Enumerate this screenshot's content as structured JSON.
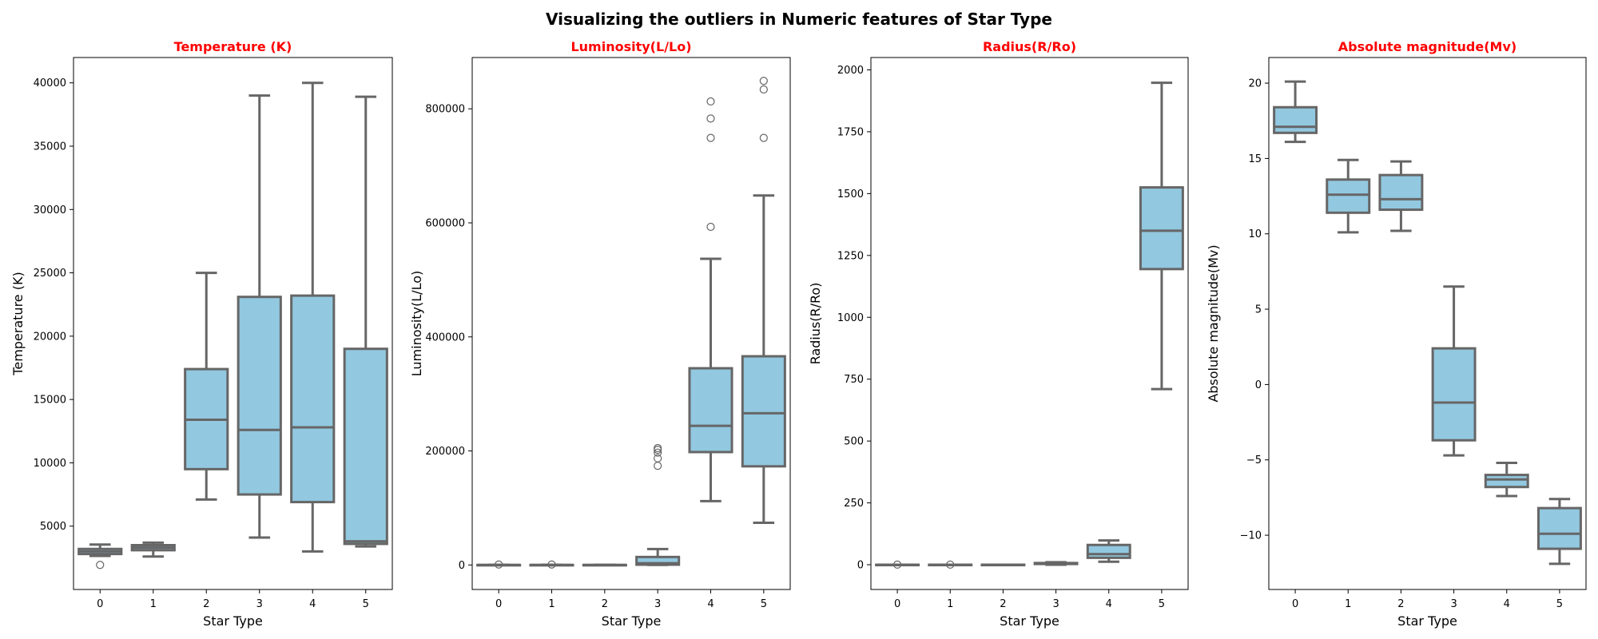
{
  "suptitle": "Visualizing the outliers in Numeric features of Star Type",
  "colors": {
    "box_fill": "#92c8e0",
    "line": "#666666",
    "title": "#ff0000"
  },
  "chart_data": [
    {
      "type": "box",
      "title": "Temperature (K)",
      "xlabel": "Star Type",
      "ylabel": "Temperature (K)",
      "categories": [
        "0",
        "1",
        "2",
        "3",
        "4",
        "5"
      ],
      "ylim": [
        0,
        42000
      ],
      "yticks": [
        5000,
        10000,
        15000,
        20000,
        25000,
        30000,
        35000,
        40000
      ],
      "ytick_labels": [
        "5000",
        "10000",
        "15000",
        "20000",
        "25000",
        "30000",
        "35000",
        "40000"
      ],
      "boxes": [
        {
          "whislo": 2650,
          "q1": 2800,
          "med": 3000,
          "q3": 3200,
          "whishi": 3550,
          "fliers": [
            1940
          ]
        },
        {
          "whislo": 2600,
          "q1": 3100,
          "med": 3300,
          "q3": 3500,
          "whishi": 3700,
          "fliers": []
        },
        {
          "whislo": 7100,
          "q1": 9500,
          "med": 13400,
          "q3": 17400,
          "whishi": 25000,
          "fliers": []
        },
        {
          "whislo": 4100,
          "q1": 7500,
          "med": 12600,
          "q3": 23100,
          "whishi": 39000,
          "fliers": []
        },
        {
          "whislo": 3000,
          "q1": 6900,
          "med": 12800,
          "q3": 23200,
          "whishi": 40000,
          "fliers": []
        },
        {
          "whislo": 3400,
          "q1": 3600,
          "med": 3800,
          "q3": 19000,
          "whishi": 38900,
          "fliers": []
        }
      ]
    },
    {
      "type": "box",
      "title": "Luminosity(L/Lo)",
      "xlabel": "Star Type",
      "ylabel": "Luminosity(L/Lo)",
      "categories": [
        "0",
        "1",
        "2",
        "3",
        "4",
        "5"
      ],
      "ylim": [
        -43000,
        890000
      ],
      "yticks": [
        0,
        200000,
        400000,
        600000,
        800000
      ],
      "ytick_labels": [
        "0",
        "200000",
        "400000",
        "600000",
        "800000"
      ],
      "boxes": [
        {
          "whislo": 0,
          "q1": 0,
          "med": 0,
          "q3": 0,
          "whishi": 0,
          "fliers": [
            800
          ]
        },
        {
          "whislo": 0,
          "q1": 0,
          "med": 0,
          "q3": 0,
          "whishi": 0,
          "fliers": [
            800
          ]
        },
        {
          "whislo": 0,
          "q1": 0,
          "med": 0,
          "q3": 0,
          "whishi": 0,
          "fliers": []
        },
        {
          "whislo": 0,
          "q1": 500,
          "med": 3000,
          "q3": 14000,
          "whishi": 28000,
          "fliers": [
            174000,
            187000,
            197000,
            202000,
            205000
          ]
        },
        {
          "whislo": 112000,
          "q1": 198000,
          "med": 244000,
          "q3": 345000,
          "whishi": 537000,
          "fliers": [
            593000,
            749000,
            783000,
            813000
          ]
        },
        {
          "whislo": 74000,
          "q1": 173000,
          "med": 266000,
          "q3": 366000,
          "whishi": 648000,
          "fliers": [
            749000,
            834000,
            849000
          ]
        }
      ]
    },
    {
      "type": "box",
      "title": "Radius(R/Ro)",
      "xlabel": "Star Type",
      "ylabel": "Radius(R/Ro)",
      "categories": [
        "0",
        "1",
        "2",
        "3",
        "4",
        "5"
      ],
      "ylim": [
        -100,
        2050
      ],
      "yticks": [
        0,
        250,
        500,
        750,
        1000,
        1250,
        1500,
        1750,
        2000
      ],
      "ytick_labels": [
        "0",
        "250",
        "500",
        "750",
        "1000",
        "1250",
        "1500",
        "1750",
        "2000"
      ],
      "boxes": [
        {
          "whislo": 0,
          "q1": 0,
          "med": 0,
          "q3": 0,
          "whishi": 0,
          "fliers": [
            0.5
          ]
        },
        {
          "whislo": 0,
          "q1": 0,
          "med": 0,
          "q3": 0,
          "whishi": 0,
          "fliers": [
            0.5
          ]
        },
        {
          "whislo": 0,
          "q1": 0,
          "med": 0,
          "q3": 0,
          "whishi": 0,
          "fliers": []
        },
        {
          "whislo": 0,
          "q1": 3,
          "med": 5,
          "q3": 7,
          "whishi": 10,
          "fliers": []
        },
        {
          "whislo": 12,
          "q1": 28,
          "med": 43,
          "q3": 80,
          "whishi": 98,
          "fliers": []
        },
        {
          "whislo": 710,
          "q1": 1195,
          "med": 1350,
          "q3": 1525,
          "whishi": 1948,
          "fliers": []
        }
      ]
    },
    {
      "type": "box",
      "title": "Absolute magnitude(Mv)",
      "xlabel": "Star Type",
      "ylabel": "Absolute magnitude(Mv)",
      "categories": [
        "0",
        "1",
        "2",
        "3",
        "4",
        "5"
      ],
      "ylim": [
        -13.6,
        21.7
      ],
      "yticks": [
        -10,
        -5,
        0,
        5,
        10,
        15,
        20
      ],
      "ytick_labels": [
        "−10",
        "−5",
        "0",
        "5",
        "10",
        "15",
        "20"
      ],
      "boxes": [
        {
          "whislo": 16.1,
          "q1": 16.7,
          "med": 17.1,
          "q3": 18.4,
          "whishi": 20.1,
          "fliers": []
        },
        {
          "whislo": 10.1,
          "q1": 11.4,
          "med": 12.6,
          "q3": 13.6,
          "whishi": 14.9,
          "fliers": []
        },
        {
          "whislo": 10.2,
          "q1": 11.6,
          "med": 12.3,
          "q3": 13.9,
          "whishi": 14.8,
          "fliers": []
        },
        {
          "whislo": -4.7,
          "q1": -3.7,
          "med": -1.2,
          "q3": 2.4,
          "whishi": 6.5,
          "fliers": []
        },
        {
          "whislo": -7.4,
          "q1": -6.8,
          "med": -6.3,
          "q3": -6.0,
          "whishi": -5.2,
          "fliers": []
        },
        {
          "whislo": -11.9,
          "q1": -10.9,
          "med": -9.9,
          "q3": -8.2,
          "whishi": -7.6,
          "fliers": []
        }
      ]
    }
  ]
}
